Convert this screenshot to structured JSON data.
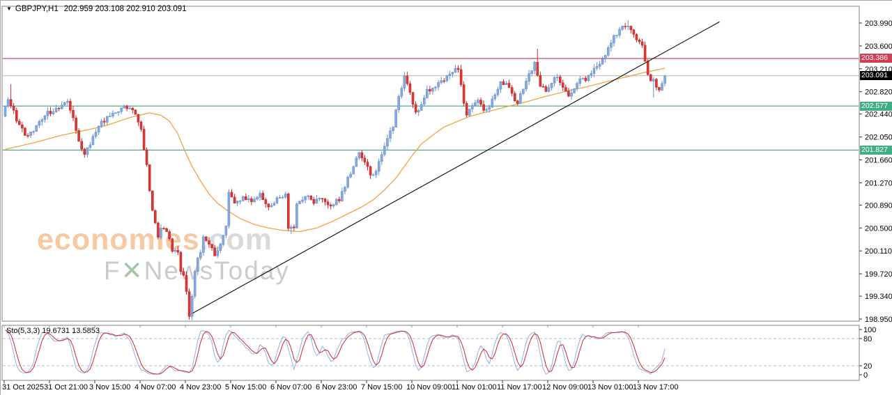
{
  "titlebar": {
    "dropdown_icon": "▼",
    "symbol": "GBPJPY,H1",
    "ohlc_text": "202.959 203.108 202.910 203.091"
  },
  "watermark": {
    "brand": "economies",
    "brand_suffix": ".com",
    "tagline_f": "F",
    "tagline_x": "✕",
    "tagline_rest": "NewsToday"
  },
  "indicator_label": "Sto(5,3,3) 19.6731 13.5853",
  "colors": {
    "bull_fill": "#86a9e1",
    "bull_stroke": "#698fd2",
    "bear_fill": "#e13434",
    "bear_stroke": "#c42b2b",
    "ma": "#efa43e",
    "trend": "#1a1a1a",
    "resistance": "#c9344f",
    "resistance_marker": "#cf3e55",
    "support": "#3aa87c",
    "support_marker": "#41ae85",
    "current_line": "#b6b6b6",
    "current_marker": "#000000",
    "sto_main": "#8fb2e3",
    "sto_signal": "#cf2434",
    "sto_levels": "#b4bdc9",
    "panel_border": "#7f7f7f",
    "axis_text": "#000000"
  },
  "chart_data": {
    "type": "candlestick",
    "symbol": "GBPJPY",
    "timeframe": "H1",
    "last_ohlc": {
      "open": 202.959,
      "high": 203.108,
      "low": 202.91,
      "close": 203.091
    },
    "y_axis": {
      "price_top": 203.99,
      "price_bottom": 198.95,
      "ticks": [
        "203.990",
        "203.600",
        "203.210",
        "202.820",
        "202.440",
        "202.050",
        "201.660",
        "201.270",
        "200.890",
        "200.500",
        "200.110",
        "199.720",
        "199.340",
        "198.950"
      ]
    },
    "x_axis": {
      "labels": [
        "31 Oct 2025",
        "31 Oct 21:00",
        "3 Nov 15:00",
        "4 Nov 07:00",
        "4 Nov 23:00",
        "5 Nov 15:00",
        "6 Nov 07:00",
        "6 Nov 23:00",
        "7 Nov 15:00",
        "10 Nov 09:00",
        "11 Nov 01:00",
        "11 Nov 17:00",
        "12 Nov 09:00",
        "13 Nov 01:00",
        "13 Nov 17:00"
      ],
      "candles_per_label": 16
    },
    "candle_count": 234,
    "price_path_anchors": [
      [
        0,
        202.4
      ],
      [
        2,
        202.72
      ],
      [
        4,
        202.48
      ],
      [
        6,
        202.22
      ],
      [
        9,
        202.05
      ],
      [
        12,
        202.25
      ],
      [
        16,
        202.45
      ],
      [
        20,
        202.55
      ],
      [
        23,
        202.68
      ],
      [
        25,
        202.35
      ],
      [
        27,
        201.95
      ],
      [
        29,
        201.78
      ],
      [
        31,
        201.92
      ],
      [
        34,
        202.25
      ],
      [
        38,
        202.42
      ],
      [
        42,
        202.52
      ],
      [
        45,
        202.58
      ],
      [
        47,
        202.45
      ],
      [
        49,
        202.18
      ],
      [
        51,
        201.55
      ],
      [
        53,
        200.8
      ],
      [
        55,
        200.35
      ],
      [
        56,
        200.52
      ],
      [
        58,
        200.45
      ],
      [
        60,
        200.12
      ],
      [
        62,
        200.05
      ],
      [
        63,
        199.8
      ],
      [
        64,
        199.7
      ],
      [
        65,
        199.45
      ],
      [
        66,
        199.0
      ],
      [
        67,
        199.35
      ],
      [
        68,
        199.8
      ],
      [
        70,
        200.1
      ],
      [
        71,
        200.35
      ],
      [
        73,
        200.25
      ],
      [
        75,
        200.05
      ],
      [
        77,
        200.2
      ],
      [
        79,
        200.55
      ],
      [
        80,
        201.1
      ],
      [
        82,
        200.95
      ],
      [
        85,
        201.0
      ],
      [
        88,
        200.95
      ],
      [
        91,
        201.05
      ],
      [
        94,
        200.88
      ],
      [
        97,
        201.0
      ],
      [
        100,
        201.05
      ],
      [
        101,
        200.5
      ],
      [
        103,
        200.48
      ],
      [
        104,
        200.9
      ],
      [
        107,
        201.05
      ],
      [
        110,
        200.95
      ],
      [
        113,
        201.02
      ],
      [
        116,
        200.85
      ],
      [
        119,
        201.0
      ],
      [
        123,
        201.45
      ],
      [
        126,
        201.75
      ],
      [
        128,
        201.65
      ],
      [
        130,
        201.38
      ],
      [
        132,
        201.5
      ],
      [
        134,
        201.75
      ],
      [
        136,
        202.0
      ],
      [
        138,
        202.25
      ],
      [
        140,
        202.7
      ],
      [
        142,
        203.05
      ],
      [
        144,
        202.8
      ],
      [
        146,
        202.45
      ],
      [
        148,
        202.6
      ],
      [
        150,
        202.85
      ],
      [
        153,
        202.9
      ],
      [
        156,
        203.0
      ],
      [
        159,
        203.18
      ],
      [
        161,
        203.22
      ],
      [
        163,
        202.6
      ],
      [
        164,
        202.4
      ],
      [
        166,
        202.62
      ],
      [
        168,
        202.65
      ],
      [
        170,
        202.48
      ],
      [
        172,
        202.55
      ],
      [
        174,
        202.8
      ],
      [
        176,
        202.95
      ],
      [
        178,
        203.0
      ],
      [
        180,
        202.75
      ],
      [
        182,
        202.65
      ],
      [
        184,
        202.9
      ],
      [
        186,
        203.1
      ],
      [
        188,
        203.3
      ],
      [
        190,
        202.95
      ],
      [
        192,
        202.85
      ],
      [
        194,
        203.0
      ],
      [
        196,
        203.1
      ],
      [
        198,
        202.9
      ],
      [
        200,
        202.75
      ],
      [
        202,
        202.9
      ],
      [
        204,
        203.0
      ],
      [
        206,
        203.05
      ],
      [
        208,
        203.12
      ],
      [
        210,
        203.25
      ],
      [
        212,
        203.4
      ],
      [
        214,
        203.55
      ],
      [
        216,
        203.75
      ],
      [
        218,
        203.88
      ],
      [
        219,
        203.95
      ],
      [
        221,
        203.92
      ],
      [
        222,
        203.9
      ],
      [
        224,
        203.72
      ],
      [
        226,
        203.62
      ],
      [
        227,
        203.3
      ],
      [
        229,
        203.0
      ],
      [
        230,
        203.05
      ],
      [
        231,
        202.92
      ],
      [
        232,
        202.88
      ],
      [
        233,
        202.96
      ]
    ],
    "ma_anchors": [
      [
        0,
        201.84
      ],
      [
        10,
        201.95
      ],
      [
        20,
        202.08
      ],
      [
        30,
        202.18
      ],
      [
        36,
        202.25
      ],
      [
        44,
        202.38
      ],
      [
        51,
        202.46
      ],
      [
        55,
        202.42
      ],
      [
        58,
        202.32
      ],
      [
        61,
        202.1
      ],
      [
        64,
        201.75
      ],
      [
        66,
        201.55
      ],
      [
        69,
        201.3
      ],
      [
        72,
        201.08
      ],
      [
        75,
        200.92
      ],
      [
        79,
        200.78
      ],
      [
        83,
        200.66
      ],
      [
        88,
        200.56
      ],
      [
        93,
        200.5
      ],
      [
        98,
        200.46
      ],
      [
        104,
        200.44
      ],
      [
        110,
        200.5
      ],
      [
        115,
        200.6
      ],
      [
        121,
        200.74
      ],
      [
        126,
        200.86
      ],
      [
        130,
        200.98
      ],
      [
        134,
        201.15
      ],
      [
        138,
        201.35
      ],
      [
        141,
        201.55
      ],
      [
        144,
        201.75
      ],
      [
        147,
        201.93
      ],
      [
        151,
        202.08
      ],
      [
        155,
        202.22
      ],
      [
        160,
        202.32
      ],
      [
        164,
        202.4
      ],
      [
        168,
        202.45
      ],
      [
        172,
        202.5
      ],
      [
        176,
        202.55
      ],
      [
        180,
        202.6
      ],
      [
        185,
        202.66
      ],
      [
        190,
        202.73
      ],
      [
        195,
        202.79
      ],
      [
        200,
        202.85
      ],
      [
        205,
        202.9
      ],
      [
        210,
        202.96
      ],
      [
        215,
        203.02
      ],
      [
        220,
        203.08
      ],
      [
        225,
        203.14
      ],
      [
        229,
        203.18
      ],
      [
        233,
        203.22
      ]
    ],
    "forced_extremes": [
      {
        "i": 2,
        "high": 202.95
      },
      {
        "i": 65,
        "low": 198.99
      },
      {
        "i": 101,
        "low": 200.4
      },
      {
        "i": 142,
        "high": 203.16
      },
      {
        "i": 161,
        "high": 203.28
      },
      {
        "i": 188,
        "high": 203.55
      },
      {
        "i": 220,
        "high": 204.04
      },
      {
        "i": 229,
        "low": 202.72
      }
    ],
    "levels": [
      {
        "label": "203.386",
        "price": 203.386,
        "kind": "resistance"
      },
      {
        "label": "202.577",
        "price": 202.577,
        "kind": "support"
      },
      {
        "label": "201.827",
        "price": 201.827,
        "kind": "support"
      }
    ],
    "current_price": {
      "label": "203.091",
      "price": 203.091
    },
    "trendline": {
      "i1": 66.2,
      "p1": 199.05,
      "i2": 252.3,
      "p2": 204.01
    },
    "indicator": {
      "name": "Sto(5,3,3)",
      "main_value": 19.6731,
      "signal_value": 13.5853,
      "levels": [
        80,
        20
      ],
      "range": [
        0,
        100
      ],
      "axis_labels": [
        "100",
        "80",
        "20",
        "0"
      ]
    }
  }
}
